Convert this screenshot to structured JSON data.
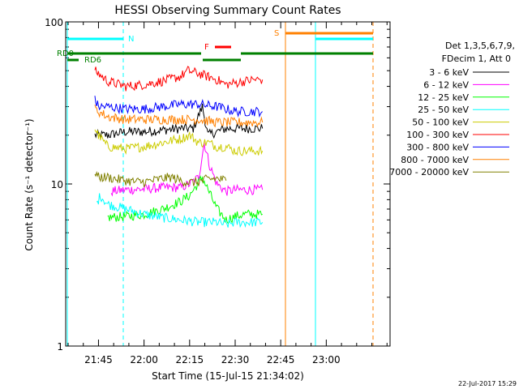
{
  "chart_data": {
    "type": "line",
    "title": "HESSI Observing Summary Count Rates",
    "xlabel": "Start Time (15-Jul-15 21:34:02)",
    "ylabel": "Count Rate (s⁻¹ detector⁻¹)",
    "x_unit": "minutes",
    "xlim": [
      21.57,
      23.35
    ],
    "ylim": [
      1,
      100
    ],
    "y_scale": "log",
    "x_ticks": [
      {
        "value": 21.75,
        "label": "21:45"
      },
      {
        "value": 22.0,
        "label": "22:00"
      },
      {
        "value": 22.25,
        "label": "22:15"
      },
      {
        "value": 22.5,
        "label": "22:30"
      },
      {
        "value": 22.75,
        "label": "22:45"
      },
      {
        "value": 23.0,
        "label": "23:00"
      }
    ],
    "y_ticks": [
      {
        "value": 1,
        "label": "1"
      },
      {
        "value": 10,
        "label": "10"
      },
      {
        "value": 100,
        "label": "100"
      }
    ],
    "legend_header": [
      "Det 1,3,5,6,7,9,",
      "FDecim 1, Att 0"
    ],
    "legend_placement": "right",
    "series": [
      {
        "name": "3 - 6 keV",
        "color": "#000000",
        "x": [
          21.73,
          21.8,
          21.9,
          22.0,
          22.1,
          22.2,
          22.24,
          22.27,
          22.32,
          22.35,
          22.4,
          22.45,
          22.5,
          22.55,
          22.6,
          22.65
        ],
        "y": [
          20,
          20,
          21,
          21,
          21.5,
          22,
          22,
          22,
          30,
          20,
          21,
          22,
          22,
          22,
          22,
          22
        ]
      },
      {
        "name": "6 - 12 keV",
        "color": "#ff00ff",
        "x": [
          21.82,
          21.9,
          22.0,
          22.1,
          22.2,
          22.25,
          22.3,
          22.33,
          22.36,
          22.4,
          22.45,
          22.5,
          22.55,
          22.6,
          22.65
        ],
        "y": [
          9,
          9.2,
          9.3,
          9.5,
          9.5,
          10,
          11,
          18,
          13,
          10,
          9,
          9.2,
          9.2,
          9.2,
          9.2
        ]
      },
      {
        "name": "12 - 25 keV",
        "color": "#00ff00",
        "x": [
          21.8,
          21.9,
          22.0,
          22.1,
          22.2,
          22.25,
          22.32,
          22.4,
          22.45,
          22.5,
          22.55,
          22.6,
          22.65
        ],
        "y": [
          6.2,
          6.3,
          6.5,
          7,
          7.8,
          8.5,
          11,
          7,
          6,
          6.3,
          6.5,
          6.5,
          6.5
        ]
      },
      {
        "name": "25 - 50 keV",
        "color": "#00ffff",
        "x": [
          21.74,
          21.76,
          21.8,
          21.9,
          22.0,
          22.1,
          22.2,
          22.3,
          22.4,
          22.45,
          22.5,
          22.55,
          22.6,
          22.65
        ],
        "y": [
          7.5,
          8.5,
          7.5,
          7,
          6.5,
          6.2,
          6,
          5.8,
          5.8,
          5.6,
          5.8,
          5.8,
          5.8,
          5.8
        ]
      },
      {
        "name": "50 - 100 keV",
        "color": "#cccc00",
        "x": [
          21.73,
          21.75,
          21.8,
          21.9,
          22.0,
          22.1,
          22.2,
          22.25,
          22.3,
          22.35,
          22.4,
          22.45,
          22.5,
          22.55,
          22.6,
          22.65
        ],
        "y": [
          22,
          20,
          17,
          16.5,
          17,
          18,
          19,
          20,
          18,
          18,
          17,
          17,
          16,
          16,
          16,
          16
        ]
      },
      {
        "name": "100 - 300 keV",
        "color": "#ff0000",
        "x": [
          21.73,
          21.75,
          21.8,
          21.9,
          22.0,
          22.1,
          22.2,
          22.24,
          22.3,
          22.4,
          22.45,
          22.5,
          22.55,
          22.6,
          22.65
        ],
        "y": [
          50,
          48,
          43,
          40,
          41,
          43,
          46,
          50,
          48,
          44,
          41,
          42,
          43,
          44,
          44
        ]
      },
      {
        "name": "300 - 800 keV",
        "color": "#0000ff",
        "x": [
          21.73,
          21.75,
          21.8,
          21.9,
          22.0,
          22.1,
          22.2,
          22.3,
          22.4,
          22.45,
          22.5,
          22.55,
          22.6,
          22.65
        ],
        "y": [
          33,
          30,
          30,
          29,
          29,
          30,
          31,
          31,
          30,
          29,
          28,
          28,
          28,
          28
        ]
      },
      {
        "name": "800 - 7000 keV",
        "color": "#ff8000",
        "x": [
          21.73,
          21.75,
          21.8,
          21.9,
          22.0,
          22.1,
          22.2,
          22.3,
          22.4,
          22.45,
          22.5,
          22.55,
          22.6,
          22.65
        ],
        "y": [
          29,
          28,
          26,
          25,
          25,
          25,
          25,
          25,
          24,
          24,
          24,
          24,
          24,
          24
        ]
      },
      {
        "name": "7000 - 20000 keV",
        "color": "#808000",
        "x": [
          21.73,
          21.75,
          21.8,
          21.85,
          21.9,
          21.95,
          22.0,
          22.05,
          22.1,
          22.15,
          22.2,
          22.25,
          22.3,
          22.35,
          22.4,
          22.45
        ],
        "y": [
          12,
          11,
          11,
          10.7,
          10.5,
          10.3,
          10.3,
          10.5,
          10.8,
          11,
          10.5,
          10.2,
          10.3,
          10.7,
          10.8,
          10.5
        ]
      }
    ],
    "annotations": [
      {
        "label": "N",
        "color": "#00ffff"
      },
      {
        "label": "S",
        "color": "#ff8000"
      },
      {
        "label": "F",
        "color": "#ff0000"
      },
      {
        "label": "RD0",
        "color": "#008000"
      },
      {
        "label": "RD6",
        "color": "#008000"
      }
    ],
    "footer_date": "22-Jul-2017 15:29"
  }
}
